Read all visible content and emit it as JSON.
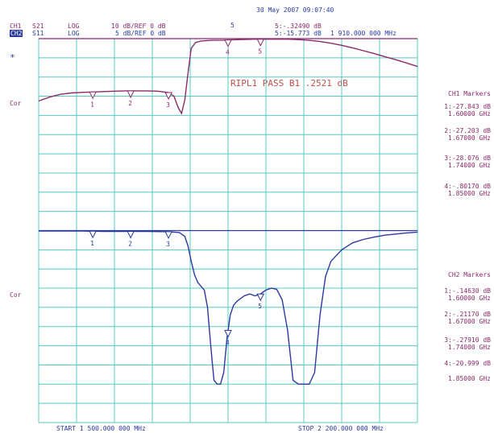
{
  "datetime": "30 May 2007  09:07:40",
  "header": {
    "ch1": {
      "label": "CH1",
      "param": "S21",
      "format": "LOG",
      "scale": "10 dB/REF 0 dB"
    },
    "ch2": {
      "label": "CH2",
      "param": "S11",
      "format": "LOG",
      "scale": "5 dB/REF 0 dB"
    },
    "active_marker_label": "5",
    "marker5_ch1": "5:-.32490 dB",
    "marker5_ch2": "5:-15.773 dB",
    "marker5_freq": "1 910.000 000 MHz"
  },
  "side_labels": {
    "ch1_dot": "*",
    "ch1_cor": "Cor",
    "ch2_cor": "Cor"
  },
  "ripple_text": "RIPL1 PASS B1 .2521 dB",
  "ch1_markers": {
    "title": "CH1 Markers",
    "items": [
      {
        "value": "1:-27.843 dB",
        "freq": "1.60000 GHz"
      },
      {
        "value": "2:-27.203 dB",
        "freq": "1.67000 GHz"
      },
      {
        "value": "3:-28.076 dB",
        "freq": "1.74000 GHz"
      },
      {
        "value": "4:-.80170 dB",
        "freq": "1.85000 GHz"
      }
    ]
  },
  "ch2_markers": {
    "title": "CH2 Markers",
    "items": [
      {
        "value": "1:-.14630 dB",
        "freq": "1.60000 GHz"
      },
      {
        "value": "2:-.21170 dB",
        "freq": "1.67000 GHz"
      },
      {
        "value": "3:-.27910 dB",
        "freq": "1.74000 GHz"
      },
      {
        "value": "4:-20.999 dB",
        "freq": "1.85000 GHz"
      }
    ]
  },
  "footer": {
    "start": "START 1 500.000 000 MHz",
    "stop": "STOP 2 200.000 000 MHz"
  },
  "colors": {
    "grid": "#58c8c0",
    "ch1": "#8a2a6a",
    "ch2": "#2a3aa0",
    "ripple": "#c0504a"
  },
  "chart_data": [
    {
      "type": "line",
      "series": [
        {
          "param": "S21",
          "x": [
            1500,
            1520,
            1540,
            1560,
            1580,
            1600,
            1620,
            1640,
            1660,
            1680,
            1700,
            1720,
            1740,
            1750,
            1758,
            1764,
            1770,
            1776,
            1782,
            1790,
            1800,
            1820,
            1840,
            1860,
            1880,
            1900,
            1920,
            1940,
            1960,
            1980,
            2000,
            2020,
            2040,
            2060,
            2080,
            2100,
            2120,
            2140,
            2160,
            2180,
            2200
          ],
          "y": [
            -32.5,
            -30.5,
            -29,
            -28.3,
            -28,
            -27.8,
            -27.6,
            -27.4,
            -27.2,
            -27.2,
            -27.2,
            -27.4,
            -28.1,
            -30,
            -36,
            -39,
            -32,
            -18,
            -5,
            -2,
            -1.2,
            -0.9,
            -0.8,
            -0.6,
            -0.4,
            -0.3,
            -0.3,
            -0.2,
            -0.3,
            -0.5,
            -0.9,
            -1.5,
            -2.4,
            -3.5,
            -4.8,
            -6.3,
            -7.8,
            -9.4,
            -11,
            -12.7,
            -14.5
          ]
        }
      ],
      "markers": [
        {
          "n": 1,
          "x": 1600
        },
        {
          "n": 2,
          "x": 1670
        },
        {
          "n": 3,
          "x": 1740
        },
        {
          "n": 4,
          "x": 1850
        },
        {
          "n": 5,
          "x": 1910
        }
      ],
      "ylim": [
        -100,
        0
      ],
      "xlim": [
        1500,
        2200
      ],
      "grid": true
    },
    {
      "type": "line",
      "series": [
        {
          "param": "S11",
          "x": [
            1500,
            1540,
            1580,
            1620,
            1660,
            1700,
            1740,
            1760,
            1770,
            1776,
            1782,
            1788,
            1794,
            1800,
            1806,
            1812,
            1818,
            1824,
            1830,
            1836,
            1842,
            1848,
            1854,
            1860,
            1866,
            1872,
            1880,
            1890,
            1900,
            1910,
            1920,
            1930,
            1940,
            1950,
            1960,
            1970,
            1980,
            1990,
            2000,
            2010,
            2020,
            2030,
            2040,
            2060,
            2080,
            2100,
            2120,
            2140,
            2160,
            2180,
            2200
          ],
          "y": [
            -0.1,
            -0.1,
            -0.1,
            -0.2,
            -0.2,
            -0.2,
            -0.3,
            -0.5,
            -1.5,
            -4,
            -8,
            -11.5,
            -13.5,
            -14.5,
            -15.5,
            -20,
            -30,
            -39,
            -40,
            -40,
            -37,
            -28,
            -22,
            -19.5,
            -18.5,
            -17.8,
            -17,
            -16.5,
            -17,
            -16.5,
            -15.5,
            -15,
            -15.3,
            -18,
            -26,
            -39,
            -40,
            -40,
            -40,
            -37,
            -22,
            -12,
            -8,
            -5,
            -3.2,
            -2.3,
            -1.7,
            -1.2,
            -0.9,
            -0.6,
            -0.4
          ]
        }
      ],
      "markers": [
        {
          "n": 1,
          "x": 1600
        },
        {
          "n": 2,
          "x": 1670
        },
        {
          "n": 3,
          "x": 1740
        },
        {
          "n": 4,
          "x": 1850
        },
        {
          "n": 5,
          "x": 1910
        }
      ],
      "ylim": [
        -50,
        0
      ],
      "xlim": [
        1500,
        2200
      ],
      "grid": true
    }
  ]
}
